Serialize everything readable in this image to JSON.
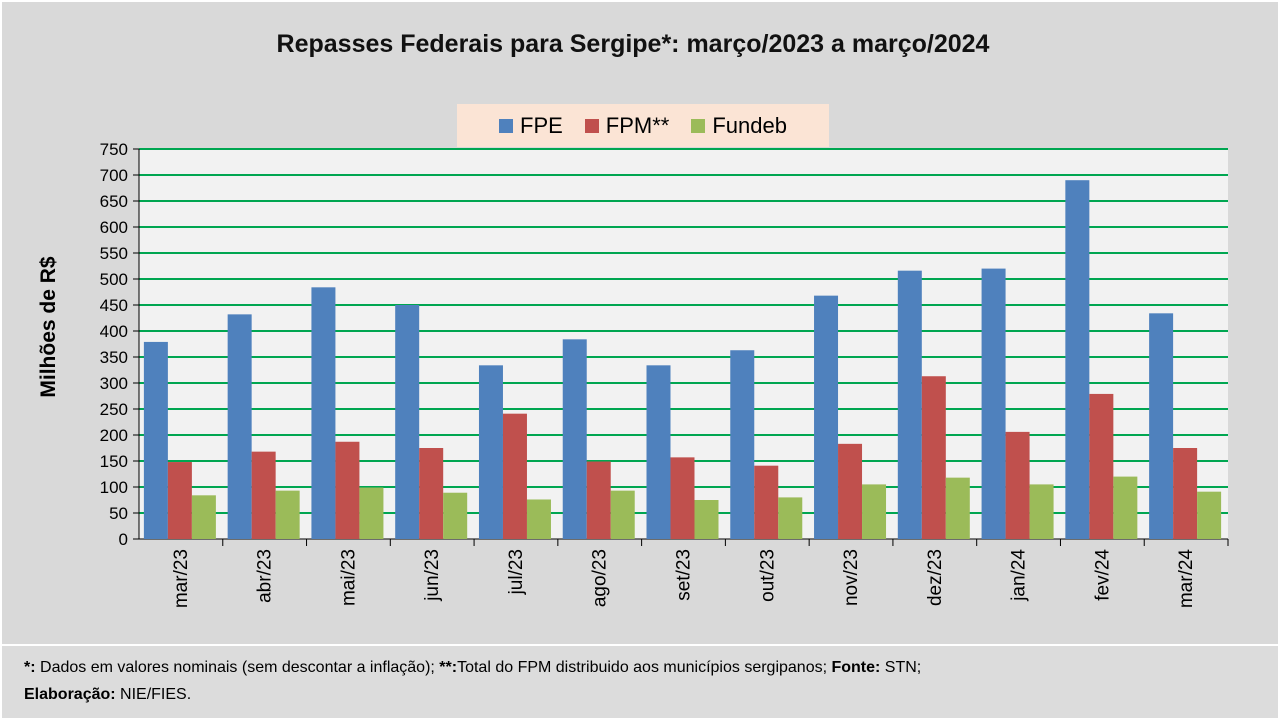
{
  "chart_data": {
    "type": "bar",
    "title": "Repasses Federais para Sergipe*: março/2023 a março/2024",
    "ylabel": "Milhões de R$",
    "xlabel": "",
    "ylim": [
      0,
      750
    ],
    "yticks": [
      0,
      50,
      100,
      150,
      200,
      250,
      300,
      350,
      400,
      450,
      500,
      550,
      600,
      650,
      700,
      750
    ],
    "grid": true,
    "legend_position": "top-center",
    "categories": [
      "mar/23",
      "abr/23",
      "mai/23",
      "jun/23",
      "jul/23",
      "ago/23",
      "set/23",
      "out/23",
      "nov/23",
      "dez/23",
      "jan/24",
      "fev/24",
      "mar/24"
    ],
    "series": [
      {
        "name": "FPE",
        "color": "#4f81bd",
        "values": [
          379,
          432,
          484,
          450,
          334,
          384,
          334,
          363,
          468,
          516,
          520,
          690,
          434
        ]
      },
      {
        "name": "FPM**",
        "color": "#c0504d",
        "values": [
          148,
          168,
          187,
          175,
          241,
          149,
          157,
          141,
          183,
          313,
          206,
          279,
          175
        ]
      },
      {
        "name": "Fundeb",
        "color": "#9bbb59",
        "values": [
          84,
          93,
          99,
          89,
          76,
          93,
          75,
          80,
          105,
          118,
          105,
          120,
          91
        ]
      }
    ]
  },
  "footnote": {
    "mark1": "*:",
    "text1": " Dados em valores nominais (sem descontar a inflação); ",
    "mark2": "**:",
    "text2": "Total  do FPM distribuido aos municípios sergipanos; ",
    "source_label": "Fonte:",
    "source_text": " STN;",
    "author_label": "Elaboração:",
    "author_text": " NIE/FIES."
  },
  "colors": {
    "panel_bg": "#d9d9d9",
    "plot_bg": "#f2f2f2",
    "gridline": "#00a651",
    "legend_bg": "#fbe4d5"
  }
}
